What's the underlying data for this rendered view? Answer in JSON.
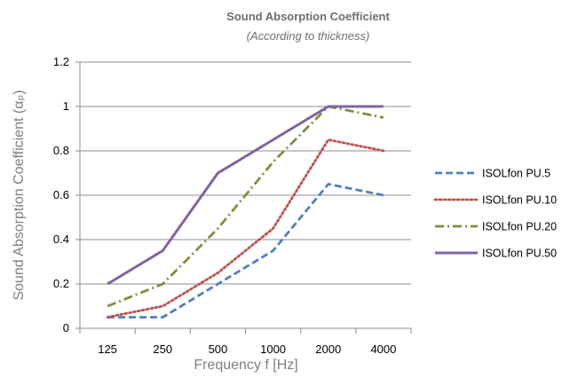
{
  "chart_data": {
    "type": "line",
    "title": "Sound Absorption Coefficient",
    "subtitle": "(According to thickness)",
    "xlabel": "Frequency f [Hz]",
    "ylabel": "Sound Absorption Coefficient (αₚ)",
    "categories": [
      "125",
      "250",
      "500",
      "1000",
      "2000",
      "4000"
    ],
    "ylim": [
      0,
      1.2
    ],
    "yticks": [
      "0",
      "0.2",
      "0.4",
      "0.6",
      "0.8",
      "1",
      "1.2"
    ],
    "grid": "horizontal",
    "legend_position": "right",
    "series": [
      {
        "name": "ISOLfon PU.5",
        "values": [
          0.05,
          0.05,
          0.2,
          0.35,
          0.65,
          0.6
        ],
        "color": "#4f81bd",
        "dash": "dashed"
      },
      {
        "name": "ISOLfon PU.10",
        "values": [
          0.05,
          0.1,
          0.25,
          0.45,
          0.85,
          0.8
        ],
        "color": "#c0504d",
        "dash": "dotted"
      },
      {
        "name": "ISOLfon PU.20",
        "values": [
          0.1,
          0.2,
          0.45,
          0.75,
          1.0,
          0.95
        ],
        "color": "#77933c",
        "dash": "dash-dot"
      },
      {
        "name": "ISOLfon PU.50",
        "values": [
          0.2,
          0.35,
          0.7,
          0.85,
          1.0,
          1.0
        ],
        "color": "#8064a2",
        "dash": "solid"
      }
    ]
  }
}
